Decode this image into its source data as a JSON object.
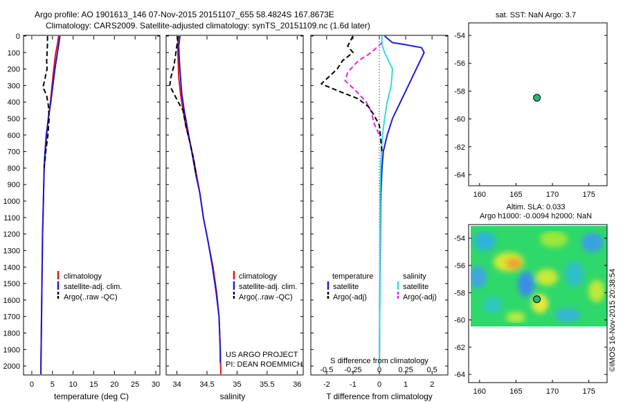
{
  "header": {
    "line1": "Argo profile: AO 1901613_146 07-Nov-2015 20151107_655 58.4824S 167.8673E",
    "line2": "Climatology: CARS2009. Satellite-adjusted climatology: synTS_20151109.nc (1.6d later)"
  },
  "colors": {
    "clim": "#e01010",
    "sat": "#1a1adc",
    "argo": "#000000",
    "cyan": "#33dddd",
    "magenta": "#e020e0",
    "dot": "#22bb77"
  },
  "depth_ticks": [
    0,
    100,
    200,
    300,
    400,
    500,
    600,
    700,
    800,
    900,
    1000,
    1100,
    1200,
    1300,
    1400,
    1500,
    1600,
    1700,
    1800,
    1900,
    2000
  ],
  "temperature_panel": {
    "xlabel": "temperature (deg C)",
    "xticks": [
      0,
      5,
      10,
      15,
      20,
      25,
      30
    ],
    "xlim": [
      -2,
      31
    ],
    "ylim": [
      0,
      2050
    ],
    "legend": [
      "climatology",
      "satellite-adj. clim.",
      "Argo(..raw -QC)"
    ],
    "series": [
      {
        "key": "clim",
        "style": "solid",
        "points": [
          [
            6.5,
            0
          ],
          [
            6.2,
            50
          ],
          [
            5.8,
            100
          ],
          [
            5.3,
            200
          ],
          [
            4.9,
            300
          ],
          [
            4.5,
            400
          ],
          [
            4.0,
            500
          ],
          [
            3.6,
            600
          ],
          [
            3.3,
            700
          ],
          [
            3.0,
            800
          ],
          [
            2.8,
            1000
          ],
          [
            2.6,
            1200
          ],
          [
            2.5,
            1400
          ],
          [
            2.4,
            1600
          ],
          [
            2.3,
            1800
          ],
          [
            2.2,
            2000
          ],
          [
            2.2,
            2050
          ]
        ]
      },
      {
        "key": "sat",
        "style": "solid",
        "points": [
          [
            6.8,
            0
          ],
          [
            6.6,
            40
          ],
          [
            6.2,
            100
          ],
          [
            5.6,
            200
          ],
          [
            5.1,
            300
          ],
          [
            4.6,
            400
          ],
          [
            4.0,
            500
          ],
          [
            3.5,
            600
          ],
          [
            3.2,
            700
          ],
          [
            3.0,
            800
          ],
          [
            2.8,
            1000
          ],
          [
            2.6,
            1200
          ],
          [
            2.5,
            1400
          ],
          [
            2.4,
            1600
          ],
          [
            2.3,
            1800
          ],
          [
            2.2,
            2000
          ],
          [
            2.2,
            2050
          ]
        ]
      },
      {
        "key": "argo",
        "style": "dash",
        "points": [
          [
            3.8,
            0
          ],
          [
            3.8,
            50
          ],
          [
            3.7,
            100
          ],
          [
            3.6,
            150
          ],
          [
            3.7,
            200
          ],
          [
            3.0,
            280
          ],
          [
            2.7,
            310
          ],
          [
            3.6,
            360
          ],
          [
            4.0,
            420
          ],
          [
            4.2,
            500
          ],
          [
            3.9,
            600
          ],
          [
            3.4,
            700
          ],
          [
            3.0,
            800
          ]
        ]
      }
    ]
  },
  "salinity_panel": {
    "xlabel": "salinity",
    "xticks": [
      34,
      34.5,
      35,
      35.5,
      36
    ],
    "xlim": [
      33.82,
      36.1
    ],
    "ylim": [
      0,
      2050
    ],
    "legend": [
      "climatology",
      "satellite-adj. clim.",
      "Argo(..raw -QC)"
    ],
    "annotation": [
      "US ARGO PROJECT",
      "PI: DEAN ROEMMICH"
    ],
    "series": [
      {
        "key": "clim",
        "style": "solid",
        "points": [
          [
            34.02,
            0
          ],
          [
            34.01,
            60
          ],
          [
            34.02,
            150
          ],
          [
            34.03,
            250
          ],
          [
            34.06,
            350
          ],
          [
            34.1,
            450
          ],
          [
            34.15,
            550
          ],
          [
            34.22,
            650
          ],
          [
            34.28,
            750
          ],
          [
            34.33,
            850
          ],
          [
            34.38,
            950
          ],
          [
            34.44,
            1100
          ],
          [
            34.52,
            1250
          ],
          [
            34.6,
            1400
          ],
          [
            34.66,
            1550
          ],
          [
            34.7,
            1700
          ],
          [
            34.72,
            1900
          ],
          [
            34.73,
            2050
          ]
        ]
      },
      {
        "key": "sat",
        "style": "solid",
        "points": [
          [
            34.05,
            0
          ],
          [
            34.03,
            60
          ],
          [
            34.04,
            150
          ],
          [
            34.06,
            250
          ],
          [
            34.08,
            350
          ],
          [
            34.12,
            450
          ],
          [
            34.17,
            550
          ],
          [
            34.22,
            650
          ],
          [
            34.27,
            750
          ],
          [
            34.32,
            850
          ],
          [
            34.38,
            950
          ],
          [
            34.44,
            1100
          ],
          [
            34.52,
            1250
          ],
          [
            34.59,
            1400
          ],
          [
            34.65,
            1550
          ],
          [
            34.7,
            1700
          ],
          [
            34.72,
            1900
          ],
          [
            34.72,
            1980
          ]
        ]
      },
      {
        "key": "argo",
        "style": "dash",
        "points": [
          [
            34.02,
            0
          ],
          [
            33.99,
            80
          ],
          [
            33.95,
            180
          ],
          [
            33.9,
            250
          ],
          [
            33.88,
            300
          ],
          [
            33.95,
            350
          ],
          [
            34.02,
            400
          ],
          [
            34.1,
            450
          ],
          [
            34.15,
            550
          ],
          [
            34.22,
            650
          ],
          [
            34.28,
            750
          ],
          [
            34.32,
            850
          ]
        ]
      }
    ]
  },
  "difference_panel": {
    "xlabel": "T difference from climatology",
    "xticks": [
      "-2",
      "-1",
      "0",
      "1",
      "2"
    ],
    "xticks_values": [
      -2,
      -1,
      0,
      1,
      2
    ],
    "xlim": [
      -2.6,
      2.6
    ],
    "ylim": [
      0,
      2050
    ],
    "top_axis_label": "S difference from climatology",
    "top_ticks": [
      "-0.5",
      "-0.25",
      "0",
      "0.25",
      "0.5"
    ],
    "top_ticks_values": [
      -2,
      -1,
      0,
      1,
      2
    ],
    "legend_left": [
      "temperature",
      "satellite",
      "Argo(-adj)"
    ],
    "legend_right": [
      "salinity",
      "satellite",
      "Argo(-adj)"
    ],
    "series": [
      {
        "key": "sat",
        "style": "solid",
        "points": [
          [
            0.2,
            0
          ],
          [
            0.5,
            40
          ],
          [
            0.9,
            50
          ],
          [
            1.6,
            70
          ],
          [
            1.7,
            100
          ],
          [
            1.4,
            200
          ],
          [
            1.1,
            300
          ],
          [
            0.8,
            400
          ],
          [
            0.5,
            500
          ],
          [
            0.3,
            600
          ],
          [
            0.15,
            700
          ],
          [
            0.1,
            800
          ],
          [
            0.05,
            1000
          ],
          [
            0.02,
            1500
          ],
          [
            0.0,
            2000
          ]
        ]
      },
      {
        "key": "cyan",
        "style": "solid",
        "points": [
          [
            0.1,
            0
          ],
          [
            0.1,
            50
          ],
          [
            0.2,
            100
          ],
          [
            0.5,
            200
          ],
          [
            0.45,
            300
          ],
          [
            0.3,
            400
          ],
          [
            0.2,
            500
          ],
          [
            0.12,
            600
          ],
          [
            0.08,
            700
          ],
          [
            0.05,
            800
          ],
          [
            0.03,
            1000
          ],
          [
            0.02,
            1300
          ],
          [
            0.02,
            1600
          ],
          [
            0.0,
            2000
          ]
        ]
      },
      {
        "key": "magenta",
        "style": "dash",
        "points": [
          [
            0.1,
            40
          ],
          [
            -0.3,
            100
          ],
          [
            -0.8,
            150
          ],
          [
            -1.2,
            220
          ],
          [
            -1.3,
            270
          ],
          [
            -0.9,
            330
          ],
          [
            -0.5,
            400
          ],
          [
            -0.3,
            460
          ],
          [
            -0.2,
            530
          ],
          [
            0.0,
            600
          ]
        ]
      },
      {
        "key": "argo",
        "style": "dash",
        "points": [
          [
            -1.0,
            0
          ],
          [
            -1.2,
            60
          ],
          [
            -1.0,
            100
          ],
          [
            -1.4,
            150
          ],
          [
            -1.6,
            200
          ],
          [
            -2.2,
            290
          ],
          [
            -1.6,
            330
          ],
          [
            -0.8,
            380
          ],
          [
            -0.4,
            430
          ],
          [
            -0.2,
            480
          ],
          [
            0.0,
            540
          ],
          [
            0.1,
            700
          ]
        ]
      }
    ]
  },
  "sst_map": {
    "title": "sat. SST: NaN  Argo: 3.7",
    "xticks": [
      160,
      165,
      170,
      175
    ],
    "yticks": [
      -54,
      -56,
      -58,
      -60,
      -62,
      -64
    ],
    "xlim": [
      158.5,
      177.5
    ],
    "ylim": [
      -64.8,
      -53.1
    ],
    "argo_position": [
      167.87,
      -58.48
    ]
  },
  "sla_map": {
    "title_line1": "Altim. SLA: 0.033",
    "title_line2": "Argo h1000: -0.0094 h2000: NaN",
    "xticks": [
      160,
      165,
      170,
      175
    ],
    "yticks": [
      -54,
      -56,
      -58,
      -60,
      -62,
      -64
    ],
    "xlim": [
      158.5,
      177.5
    ],
    "ylim": [
      -64.6,
      -53.0
    ],
    "field_lat_range": [
      -53.0,
      -60.1
    ],
    "argo_position": [
      167.87,
      -58.48
    ]
  },
  "footer_label": "©IMOS 16-Nov-2015 20:38:54"
}
